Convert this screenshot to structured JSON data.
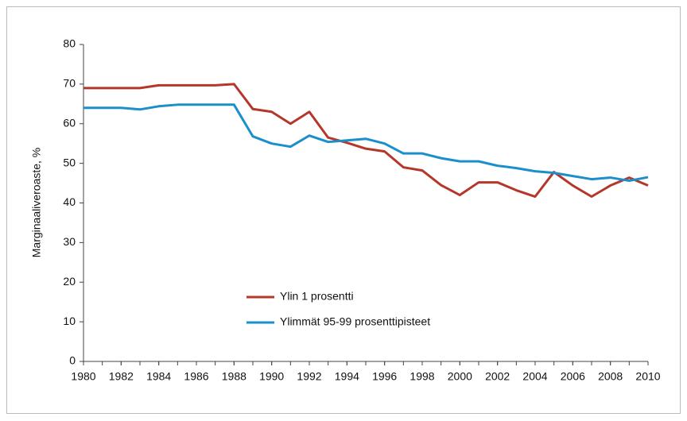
{
  "chart_data": {
    "type": "line",
    "ylabel": "Marginaaliveroaste, %",
    "x": [
      1980,
      1981,
      1982,
      1983,
      1984,
      1985,
      1986,
      1987,
      1988,
      1989,
      1990,
      1991,
      1992,
      1993,
      1994,
      1995,
      1996,
      1997,
      1998,
      1999,
      2000,
      2001,
      2002,
      2003,
      2004,
      2005,
      2006,
      2007,
      2008,
      2009,
      2010
    ],
    "series": [
      {
        "name": "Ylin 1 prosentti",
        "color": "#b5372a",
        "values": [
          69,
          69,
          69,
          69,
          69.7,
          69.7,
          69.7,
          69.7,
          70,
          63.7,
          63,
          60,
          63,
          56.5,
          55.2,
          53.7,
          53,
          49,
          48.2,
          44.5,
          42,
          45.2,
          45.2,
          43.2,
          41.6,
          47.8,
          44.4,
          41.6,
          44.4,
          46.4,
          44.4
        ]
      },
      {
        "name": "Ylimmät 95-99 prosenttipisteet",
        "color": "#1a8fcc",
        "values": [
          64,
          64,
          64,
          63.6,
          64.4,
          64.8,
          64.8,
          64.8,
          64.8,
          56.8,
          55,
          54.2,
          57,
          55.4,
          55.8,
          56.2,
          55,
          52.5,
          52.5,
          51.3,
          50.5,
          50.5,
          49.4,
          48.8,
          48,
          47.6,
          46.8,
          46,
          46.4,
          45.6,
          46.5
        ]
      }
    ],
    "xlim": [
      1980,
      2010
    ],
    "xticks": [
      1980,
      1982,
      1984,
      1986,
      1988,
      1990,
      1992,
      1994,
      1996,
      1998,
      2000,
      2002,
      2004,
      2006,
      2008,
      2010
    ],
    "ylim": [
      0,
      80
    ],
    "yticks": [
      0,
      10,
      20,
      30,
      40,
      50,
      60,
      70,
      80
    ],
    "grid": false,
    "legend": "inside-center"
  }
}
